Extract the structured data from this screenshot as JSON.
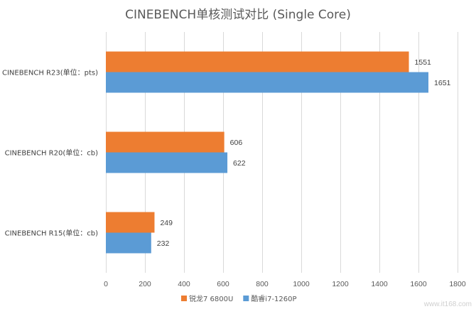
{
  "chart_data": {
    "type": "bar",
    "orientation": "horizontal",
    "title": "CINEBENCH单核测试对比 (Single Core)",
    "categories": [
      "CINEBENCH R23(单位：pts)",
      "CINEBENCH R20(单位：cb)",
      "CINEBENCH R15(单位：cb)"
    ],
    "series": [
      {
        "name": "锐龙7 6800U",
        "color": "#ED7D31",
        "values": [
          1551,
          606,
          249
        ]
      },
      {
        "name": "酷睿i7-1260P",
        "color": "#5B9BD5",
        "values": [
          1651,
          622,
          232
        ]
      }
    ],
    "xlim": [
      0,
      1800
    ],
    "xticks": [
      0,
      200,
      400,
      600,
      800,
      1000,
      1200,
      1400,
      1600,
      1800
    ],
    "xtick_labels": [
      "0",
      "200",
      "400",
      "600",
      "800",
      "1000",
      "1200",
      "1400",
      "1600",
      "1800"
    ],
    "grid": true,
    "legend_position": "bottom"
  },
  "watermark": "www.it168.com"
}
